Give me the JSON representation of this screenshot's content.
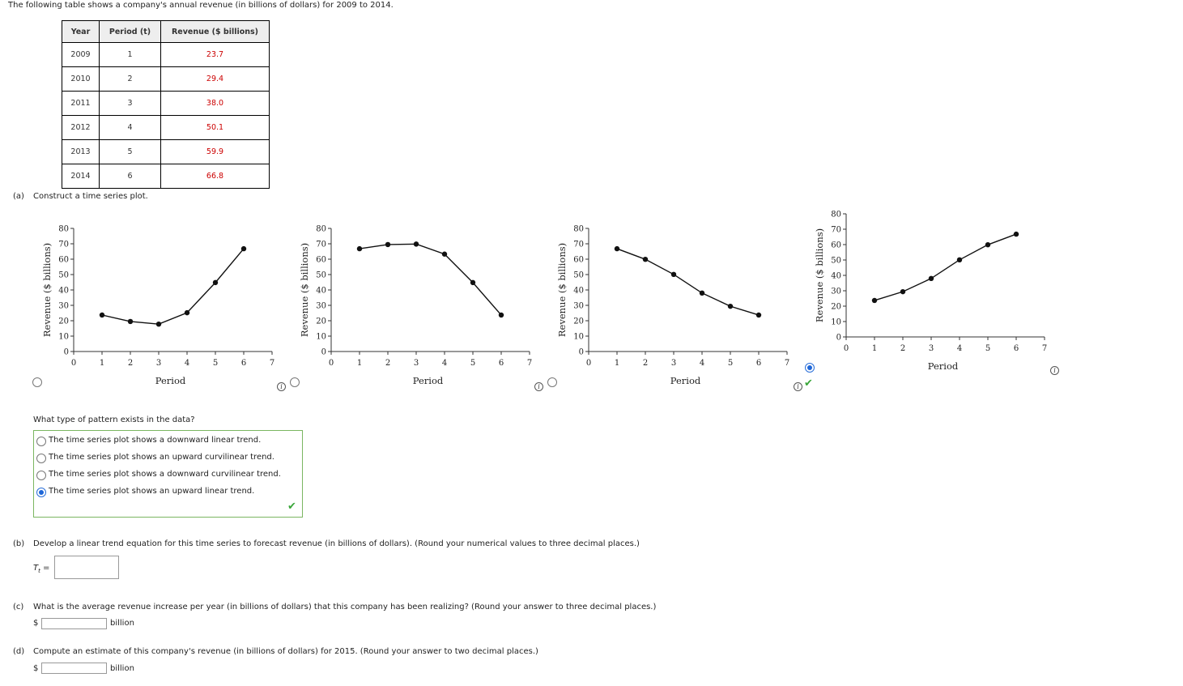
{
  "intro": "The following table shows a company's annual revenue (in billions of dollars) for 2009 to 2014.",
  "table": {
    "headers": [
      "Year",
      "Period (t)",
      "Revenue ($ billions)"
    ],
    "rows": [
      [
        "2009",
        "1",
        "23.7"
      ],
      [
        "2010",
        "2",
        "29.4"
      ],
      [
        "2011",
        "3",
        "38.0"
      ],
      [
        "2012",
        "4",
        "50.1"
      ],
      [
        "2013",
        "5",
        "59.9"
      ],
      [
        "2014",
        "6",
        "66.8"
      ]
    ]
  },
  "part_a": {
    "label": "(a)",
    "prompt": "Construct a time series plot.",
    "axis_ylabel": "Revenue ($ billions)",
    "axis_xlabel": "Period",
    "y_ticks": [
      "0",
      "10",
      "20",
      "30",
      "40",
      "50",
      "60",
      "70",
      "80"
    ],
    "x_ticks": [
      "0",
      "1",
      "2",
      "3",
      "4",
      "5",
      "6",
      "7"
    ],
    "selected_option": 4
  },
  "chart_data": [
    {
      "type": "line",
      "x": [
        1,
        2,
        3,
        4,
        5,
        6
      ],
      "y": [
        23.7,
        19.5,
        17.8,
        25.2,
        44.8,
        66.8
      ],
      "xlim": [
        0,
        7
      ],
      "ylim": [
        0,
        80
      ],
      "xlabel": "Period",
      "ylabel": "Revenue ($ billions)"
    },
    {
      "type": "line",
      "x": [
        1,
        2,
        3,
        4,
        5,
        6
      ],
      "y": [
        66.8,
        69.5,
        69.8,
        63.3,
        44.8,
        23.7
      ],
      "xlim": [
        0,
        7
      ],
      "ylim": [
        0,
        80
      ],
      "xlabel": "Period",
      "ylabel": "Revenue ($ billions)"
    },
    {
      "type": "line",
      "x": [
        1,
        2,
        3,
        4,
        5,
        6
      ],
      "y": [
        66.8,
        59.9,
        50.1,
        38.0,
        29.4,
        23.7
      ],
      "xlim": [
        0,
        7
      ],
      "ylim": [
        0,
        80
      ],
      "xlabel": "Period",
      "ylabel": "Revenue ($ billions)"
    },
    {
      "type": "line",
      "x": [
        1,
        2,
        3,
        4,
        5,
        6
      ],
      "y": [
        23.7,
        29.4,
        38.0,
        50.1,
        59.9,
        66.8
      ],
      "xlim": [
        0,
        7
      ],
      "ylim": [
        0,
        80
      ],
      "xlabel": "Period",
      "ylabel": "Revenue ($ billions)"
    }
  ],
  "pattern_q": {
    "prompt": "What type of pattern exists in the data?",
    "options": [
      "The time series plot shows a downward linear trend.",
      "The time series plot shows an upward curvilinear trend.",
      "The time series plot shows a downward curvilinear trend.",
      "The time series plot shows an upward linear trend."
    ],
    "selected": 3
  },
  "part_b": {
    "label": "(b)",
    "prompt": "Develop a linear trend equation for this time series to forecast revenue (in billions of dollars). (Round your numerical values to three decimal places.)",
    "eq_label": "T",
    "eq_sub": "t",
    "eq_sign": "=",
    "value": ""
  },
  "part_c": {
    "label": "(c)",
    "prompt": "What is the average revenue increase per year (in billions of dollars) that this company has been realizing? (Round your answer to three decimal places.)",
    "currency": "$",
    "unit": "billion",
    "value": ""
  },
  "part_d": {
    "label": "(d)",
    "prompt": "Compute an estimate of this company's revenue (in billions of dollars) for 2015. (Round your answer to two decimal places.)",
    "currency": "$",
    "unit": "billion",
    "value": ""
  },
  "colors": {
    "correct_green": "#3aa63a",
    "radio_blue": "#1e66d8",
    "table_value_red": "#cc0000"
  }
}
